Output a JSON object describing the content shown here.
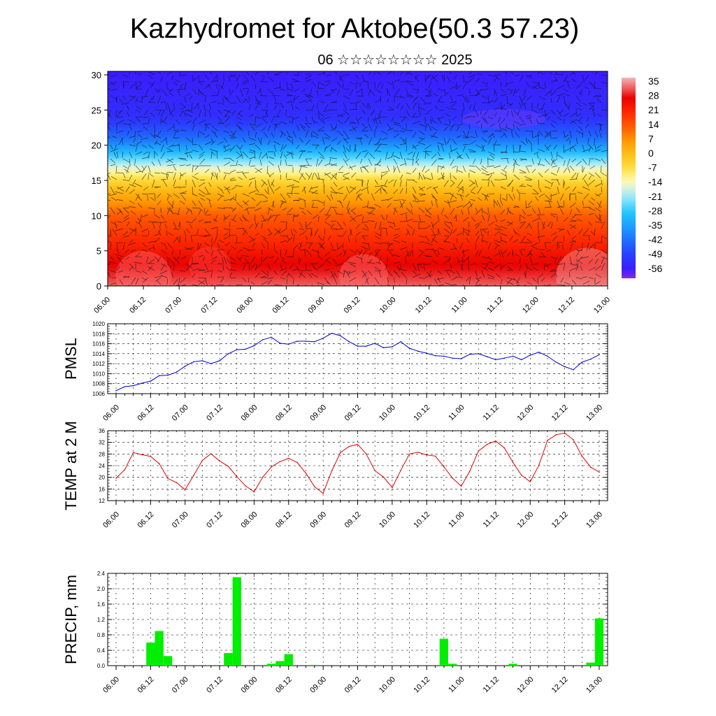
{
  "title": "Kazhydromet for Aktobe(50.3 57.23)",
  "subtitle": "06 ☆☆☆☆☆☆☆☆ 2025",
  "chart_data": [
    {
      "id": "cross-section",
      "type": "heatmap",
      "description_values": "filled temperature contours with wind vectors vs. height level",
      "x_ticks": [
        "06.00",
        "06.12",
        "07.00",
        "07.12",
        "08.00",
        "08.12",
        "09.00",
        "09.12",
        "10.00",
        "10.12",
        "11.00",
        "11.12",
        "12.00",
        "12.12",
        "13.00"
      ],
      "y_ticks": [
        0,
        5,
        10,
        15,
        20,
        25,
        30
      ],
      "ylim": [
        0,
        30.5
      ],
      "colorbar": {
        "labels": [
          "35",
          "28",
          "21",
          "14",
          "7",
          "0",
          "-7",
          "-14",
          "-21",
          "-28",
          "-35",
          "-42",
          "-49",
          "-56"
        ],
        "range": [
          -60,
          38
        ]
      },
      "temperature_profile": [
        {
          "level": 0,
          "t": 33
        },
        {
          "level": 5,
          "t": 24
        },
        {
          "level": 10,
          "t": 14
        },
        {
          "level": 14,
          "t": 0
        },
        {
          "level": 16,
          "t": -10
        },
        {
          "level": 19,
          "t": -30
        },
        {
          "level": 21,
          "t": -42
        },
        {
          "level": 24,
          "t": -52
        },
        {
          "level": 30.5,
          "t": -56
        }
      ]
    },
    {
      "id": "pmsl",
      "type": "line",
      "ylabel": "PMSL",
      "ylim": [
        1006,
        1020
      ],
      "y_ticks": [
        1006,
        1008,
        1010,
        1012,
        1014,
        1016,
        1018,
        1020
      ],
      "x_ticks": [
        "06.00",
        "06.12",
        "07.00",
        "07.12",
        "08.00",
        "08.12",
        "09.00",
        "09.12",
        "10.00",
        "10.12",
        "11.00",
        "11.12",
        "12.00",
        "12.12",
        "13.00"
      ],
      "x_step_hours": 3,
      "color": "#0000cc",
      "values": [
        1006.6,
        1007.4,
        1007.6,
        1008.1,
        1008.5,
        1009.6,
        1009.7,
        1010.3,
        1011.5,
        1012.4,
        1012.6,
        1012.0,
        1012.6,
        1014.0,
        1014.8,
        1014.9,
        1015.6,
        1016.8,
        1017.3,
        1016.1,
        1015.9,
        1016.5,
        1016.5,
        1016.4,
        1017.1,
        1018.1,
        1017.6,
        1016.4,
        1015.5,
        1015.5,
        1016.1,
        1015.2,
        1015.4,
        1016.4,
        1015.1,
        1014.5,
        1014.1,
        1013.6,
        1013.5,
        1013.1,
        1013.0,
        1013.9,
        1014.0,
        1013.4,
        1012.8,
        1013.1,
        1013.5,
        1012.8,
        1013.7,
        1014.3,
        1013.5,
        1012.3,
        1011.4,
        1010.8,
        1012.3,
        1012.9,
        1013.8
      ]
    },
    {
      "id": "temp2m",
      "type": "line",
      "ylabel": "TEMP at 2 M",
      "ylim": [
        12,
        36
      ],
      "y_ticks": [
        12,
        16,
        20,
        24,
        28,
        32,
        36
      ],
      "x_ticks": [
        "06.00",
        "06.12",
        "07.00",
        "07.12",
        "08.00",
        "08.12",
        "09.00",
        "09.12",
        "10.00",
        "10.12",
        "11.00",
        "11.12",
        "12.00",
        "12.12",
        "13.00"
      ],
      "x_step_hours": 3,
      "color": "#e00000",
      "values": [
        19.7,
        22.6,
        28.5,
        27.8,
        27.2,
        24.7,
        19.6,
        18.2,
        15.8,
        20.7,
        25.8,
        28.1,
        25.6,
        23.8,
        20.2,
        17.1,
        15.0,
        20.1,
        23.6,
        25.4,
        26.5,
        25.1,
        21.4,
        16.8,
        14.5,
        22.2,
        28.5,
        30.6,
        31.3,
        28.0,
        22.3,
        20.1,
        16.5,
        22.4,
        28.0,
        28.6,
        27.7,
        27.3,
        23.6,
        19.7,
        17.0,
        22.1,
        29.1,
        31.3,
        32.5,
        30.1,
        25.1,
        20.7,
        18.5,
        24.1,
        32.7,
        34.6,
        35.2,
        32.9,
        27.3,
        23.5,
        21.8
      ]
    },
    {
      "id": "precip",
      "type": "bar",
      "ylabel": "PRECIP, mm",
      "ylim": [
        0,
        2.4
      ],
      "y_ticks": [
        "0.0",
        "0.4",
        "0.8",
        "1.2",
        "1.6",
        "2.0",
        "2.4"
      ],
      "x_ticks": [
        "06.00",
        "06.12",
        "07.00",
        "07.12",
        "08.00",
        "08.12",
        "09.00",
        "09.12",
        "10.00",
        "10.12",
        "11.00",
        "11.12",
        "12.00",
        "12.12",
        "13.00"
      ],
      "x_step_hours": 3,
      "color": "#00ee00",
      "values": [
        0,
        0,
        0,
        0,
        0.6,
        0.9,
        0.25,
        0,
        0,
        0,
        0,
        0,
        0,
        0.33,
        2.3,
        0,
        0,
        0,
        0.05,
        0.12,
        0.3,
        0,
        0,
        0.02,
        0,
        0,
        0,
        0,
        0,
        0,
        0,
        0,
        0,
        0,
        0,
        0,
        0,
        0,
        0.7,
        0.05,
        0,
        0,
        0,
        0,
        0,
        0,
        0.05,
        0,
        0,
        0,
        0,
        0,
        0,
        0,
        0,
        0.08,
        1.23
      ]
    }
  ]
}
